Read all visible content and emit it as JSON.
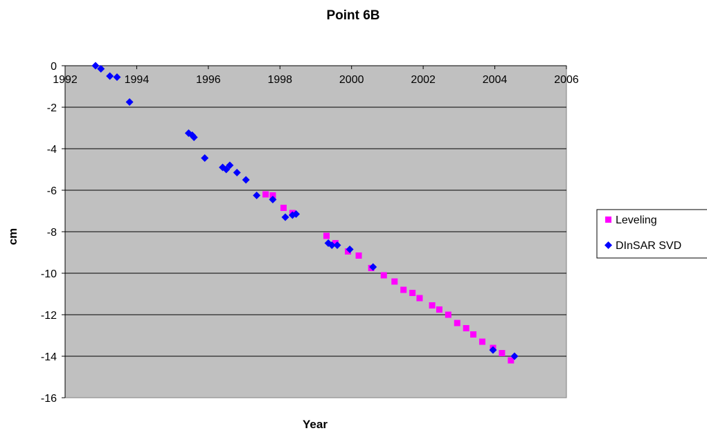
{
  "chart_data": {
    "type": "scatter",
    "title": "Point 6B",
    "xlabel": "Year",
    "ylabel": "cm",
    "xlim": [
      1992,
      2006
    ],
    "ylim": [
      -16,
      0
    ],
    "xticks": [
      "1992",
      "1994",
      "1996",
      "1998",
      "2000",
      "2002",
      "2004",
      "2006"
    ],
    "yticks": [
      "0",
      "-2",
      "-4",
      "-6",
      "-8",
      "-10",
      "-12",
      "-14",
      "-16"
    ],
    "x_tick_values": [
      1992,
      1994,
      1996,
      1998,
      2000,
      2002,
      2004,
      2006
    ],
    "y_tick_values": [
      0,
      -2,
      -4,
      -6,
      -8,
      -10,
      -12,
      -14,
      -16
    ],
    "grid": "horizontal",
    "plot_background": "#c0c0c0",
    "legend_position": "right",
    "series": [
      {
        "name": "Leveling",
        "marker": "square",
        "color": "#ff00ff",
        "x": [
          1997.6,
          1997.8,
          1998.1,
          1998.35,
          1999.3,
          1999.55,
          1999.9,
          2000.2,
          2000.55,
          2000.9,
          2001.2,
          2001.45,
          2001.7,
          2001.9,
          2002.25,
          2002.45,
          2002.7,
          2002.95,
          2003.2,
          2003.4,
          2003.65,
          2003.95,
          2004.2,
          2004.45
        ],
        "y": [
          -6.2,
          -6.25,
          -6.85,
          -7.1,
          -8.2,
          -8.55,
          -8.95,
          -9.15,
          -9.75,
          -10.1,
          -10.4,
          -10.8,
          -10.95,
          -11.2,
          -11.55,
          -11.75,
          -12.0,
          -12.4,
          -12.65,
          -12.95,
          -13.3,
          -13.6,
          -13.85,
          -14.2
        ]
      },
      {
        "name": "DInSAR SVD",
        "marker": "diamond",
        "color": "#0000ff",
        "x": [
          1992.85,
          1993.0,
          1993.25,
          1993.45,
          1993.8,
          1995.45,
          1995.55,
          1995.6,
          1995.9,
          1996.4,
          1996.5,
          1996.6,
          1996.8,
          1997.05,
          1997.35,
          1997.8,
          1998.15,
          1998.35,
          1998.45,
          1999.35,
          1999.45,
          1999.6,
          1999.95,
          2000.6,
          2003.95,
          2004.55
        ],
        "y": [
          0.0,
          -0.15,
          -0.5,
          -0.55,
          -1.75,
          -3.25,
          -3.35,
          -3.45,
          -4.45,
          -4.9,
          -5.0,
          -4.8,
          -5.15,
          -5.5,
          -6.25,
          -6.45,
          -7.3,
          -7.2,
          -7.15,
          -8.55,
          -8.65,
          -8.65,
          -8.85,
          -9.7,
          -13.7,
          -14.0
        ]
      }
    ]
  }
}
